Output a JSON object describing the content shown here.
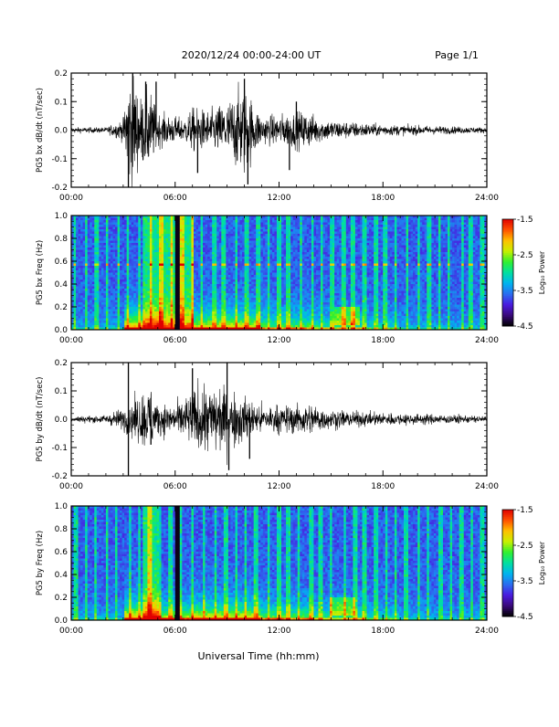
{
  "header": {
    "title": "2020/12/24  00:00-24:00 UT",
    "page": "Page 1/1"
  },
  "footer": {
    "xlabel": "Universal Time (hh:mm)"
  },
  "colorbar": {
    "label": "Log₁₀ Power",
    "ticks": [
      "-1.5",
      "-2.5",
      "-3.5",
      "-4.5"
    ],
    "range": [
      -4.5,
      -1.5
    ],
    "colormap": [
      "#000000",
      "#3a0a7a",
      "#4a1ae0",
      "#2a6ef0",
      "#00b4f0",
      "#00e0a0",
      "#30f030",
      "#c8f000",
      "#ffc000",
      "#ff5000",
      "#e00000"
    ]
  },
  "chart_data": [
    {
      "type": "line",
      "name": "bx-waveform",
      "ylabel": "PG5 bx dB/dt (nT/sec)",
      "xlim": [
        0,
        24
      ],
      "ylim": [
        -0.2,
        0.2
      ],
      "xticks": [
        "00:00",
        "06:00",
        "12:00",
        "18:00",
        "24:00"
      ],
      "yticks": [
        "0.2",
        "0.1",
        "0.0",
        "-0.1",
        "-0.2"
      ],
      "envelope": [
        {
          "x": 0,
          "y": 0.01
        },
        {
          "x": 2,
          "y": 0.01
        },
        {
          "x": 3.0,
          "y": 0.04
        },
        {
          "x": 3.3,
          "y": 0.2
        },
        {
          "x": 3.6,
          "y": 0.19
        },
        {
          "x": 4.0,
          "y": 0.12
        },
        {
          "x": 4.5,
          "y": 0.15
        },
        {
          "x": 5.0,
          "y": 0.06
        },
        {
          "x": 6.0,
          "y": 0.05
        },
        {
          "x": 6.5,
          "y": 0.04
        },
        {
          "x": 7.0,
          "y": 0.08
        },
        {
          "x": 8.0,
          "y": 0.07
        },
        {
          "x": 8.5,
          "y": 0.09
        },
        {
          "x": 9.0,
          "y": 0.1
        },
        {
          "x": 10.0,
          "y": 0.17
        },
        {
          "x": 10.5,
          "y": 0.1
        },
        {
          "x": 11.0,
          "y": 0.05
        },
        {
          "x": 12.5,
          "y": 0.06
        },
        {
          "x": 13.5,
          "y": 0.07
        },
        {
          "x": 14.5,
          "y": 0.04
        },
        {
          "x": 16.0,
          "y": 0.03
        },
        {
          "x": 18.0,
          "y": 0.02
        },
        {
          "x": 24,
          "y": 0.01
        }
      ],
      "spikes": [
        {
          "x": 3.3,
          "y": -0.2
        },
        {
          "x": 3.55,
          "y": 0.2
        },
        {
          "x": 4.3,
          "y": 0.17
        },
        {
          "x": 4.9,
          "y": 0.17
        },
        {
          "x": 7.3,
          "y": -0.15
        },
        {
          "x": 10.0,
          "y": 0.18
        },
        {
          "x": 10.2,
          "y": -0.19
        },
        {
          "x": 12.6,
          "y": -0.14
        },
        {
          "x": 13.0,
          "y": 0.1
        }
      ]
    },
    {
      "type": "heatmap",
      "name": "bx-spectrogram",
      "ylabel": "PG5 bx Freq (Hz)",
      "xlim": [
        0,
        24
      ],
      "ylim": [
        0,
        1.0
      ],
      "xticks": [
        "00:00",
        "06:00",
        "12:00",
        "18:00",
        "24:00"
      ],
      "yticks": [
        "1.0",
        "0.8",
        "0.6",
        "0.4",
        "0.2",
        "0.0"
      ],
      "features": {
        "broadband_band_hours": [
          4.1,
          7.0
        ],
        "mid_band_hz": 0.57,
        "dark_gap_hours": [
          6.05,
          6.2
        ],
        "low_freq_patch": {
          "x": [
            15.2,
            16.6
          ],
          "y": [
            0.04,
            0.2
          ]
        }
      }
    },
    {
      "type": "line",
      "name": "by-waveform",
      "ylabel": "PG5 by dB/dt (nT/sec)",
      "xlim": [
        0,
        24
      ],
      "ylim": [
        -0.2,
        0.2
      ],
      "xticks": [
        "00:00",
        "06:00",
        "12:00",
        "18:00",
        "24:00"
      ],
      "yticks": [
        "0.2",
        "0.1",
        "0.0",
        "-0.1",
        "-0.2"
      ],
      "envelope": [
        {
          "x": 0,
          "y": 0.01
        },
        {
          "x": 2,
          "y": 0.015
        },
        {
          "x": 3.0,
          "y": 0.04
        },
        {
          "x": 3.4,
          "y": 0.06
        },
        {
          "x": 4.2,
          "y": 0.1
        },
        {
          "x": 4.6,
          "y": 0.12
        },
        {
          "x": 5.0,
          "y": 0.06
        },
        {
          "x": 6.0,
          "y": 0.05
        },
        {
          "x": 7.0,
          "y": 0.1
        },
        {
          "x": 7.5,
          "y": 0.13
        },
        {
          "x": 8.5,
          "y": 0.12
        },
        {
          "x": 9.5,
          "y": 0.1
        },
        {
          "x": 10.0,
          "y": 0.08
        },
        {
          "x": 11.0,
          "y": 0.05
        },
        {
          "x": 12.5,
          "y": 0.05
        },
        {
          "x": 13.5,
          "y": 0.06
        },
        {
          "x": 15.0,
          "y": 0.035
        },
        {
          "x": 17.0,
          "y": 0.025
        },
        {
          "x": 24,
          "y": 0.012
        }
      ],
      "spikes": [
        {
          "x": 3.3,
          "y": -0.2
        },
        {
          "x": 3.3,
          "y": 0.2
        },
        {
          "x": 4.6,
          "y": -0.09
        },
        {
          "x": 7.0,
          "y": 0.18
        },
        {
          "x": 9.0,
          "y": 0.2
        },
        {
          "x": 9.1,
          "y": -0.18
        },
        {
          "x": 10.3,
          "y": -0.14
        }
      ]
    },
    {
      "type": "heatmap",
      "name": "by-spectrogram",
      "ylabel": "PG5 by Freq (Hz)",
      "xlim": [
        0,
        24
      ],
      "ylim": [
        0,
        1.0
      ],
      "xticks": [
        "00:00",
        "06:00",
        "12:00",
        "18:00",
        "24:00"
      ],
      "yticks": [
        "1.0",
        "0.8",
        "0.6",
        "0.4",
        "0.2",
        "0.0"
      ],
      "features": {
        "broadband_band_hours": [
          4.1,
          5.1
        ],
        "dark_gap_hours": [
          6.05,
          6.2
        ],
        "low_freq_patch": {
          "x": [
            15.0,
            16.4
          ],
          "y": [
            0.04,
            0.2
          ]
        }
      }
    }
  ]
}
